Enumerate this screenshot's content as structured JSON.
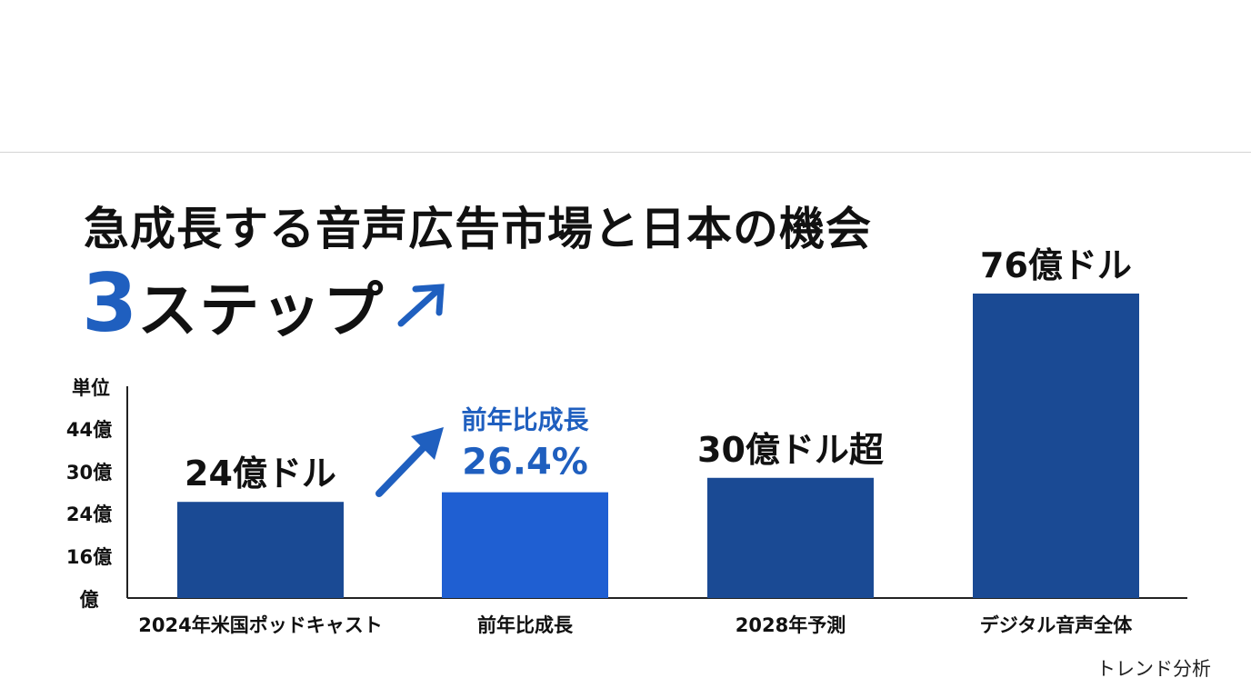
{
  "title": "急成長する音声広告市場と日本の機会",
  "subtitle": {
    "number": "3",
    "text": "ステップ"
  },
  "footer_note": "トレンド分析",
  "colors": {
    "bar": "#1a4a94",
    "highlight": "#1f5fd2",
    "accent_text": "#1f5fbf",
    "axis": "#222222"
  },
  "chart_data": {
    "type": "bar",
    "categories": [
      "2024年米国ポッドキャスト",
      "前年比成長",
      "2028年予測",
      "デジタル音声全体"
    ],
    "values": [
      24,
      26.4,
      30,
      76
    ],
    "value_labels": [
      "24億ドル",
      "26.4%",
      "30億ドル超",
      "76億ドル"
    ],
    "highlight_index": 1,
    "highlight_caption": "前年比成長",
    "ylabel": "単位",
    "ytick_labels": [
      "44億",
      "30億",
      "24億",
      "16億",
      "億"
    ],
    "ytick_values": [
      44,
      30,
      24,
      16,
      0
    ],
    "grid": false,
    "legend": "none"
  }
}
